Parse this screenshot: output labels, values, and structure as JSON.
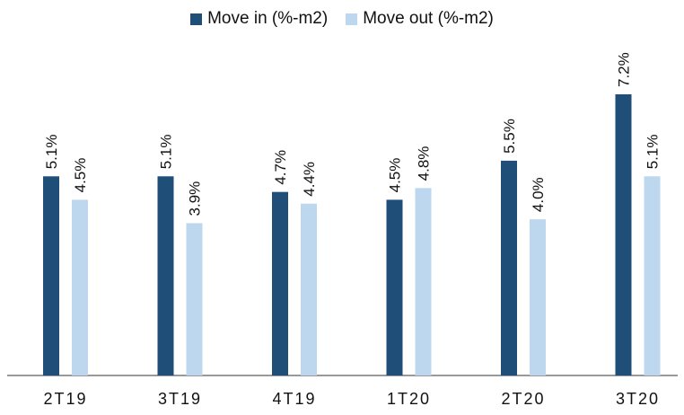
{
  "chart_data": {
    "type": "bar",
    "categories": [
      "2T19",
      "3T19",
      "4T19",
      "1T20",
      "2T20",
      "3T20"
    ],
    "series": [
      {
        "name": "Move in (%-m2)",
        "color": "#1f4e79",
        "values": [
          5.1,
          5.1,
          4.7,
          4.5,
          5.5,
          7.2
        ],
        "labels": [
          "5.1%",
          "5.1%",
          "4.7%",
          "4.5%",
          "5.5%",
          "7.2%"
        ]
      },
      {
        "name": "Move out (%-m2)",
        "color": "#bdd7ee",
        "values": [
          4.5,
          3.9,
          4.4,
          4.8,
          4.0,
          5.1
        ],
        "labels": [
          "4.5%",
          "3.9%",
          "4.4%",
          "4.8%",
          "4.0%",
          "5.1%"
        ]
      }
    ],
    "ylim": [
      0,
      7.2
    ],
    "legend_position": "top-center",
    "grid": false
  }
}
